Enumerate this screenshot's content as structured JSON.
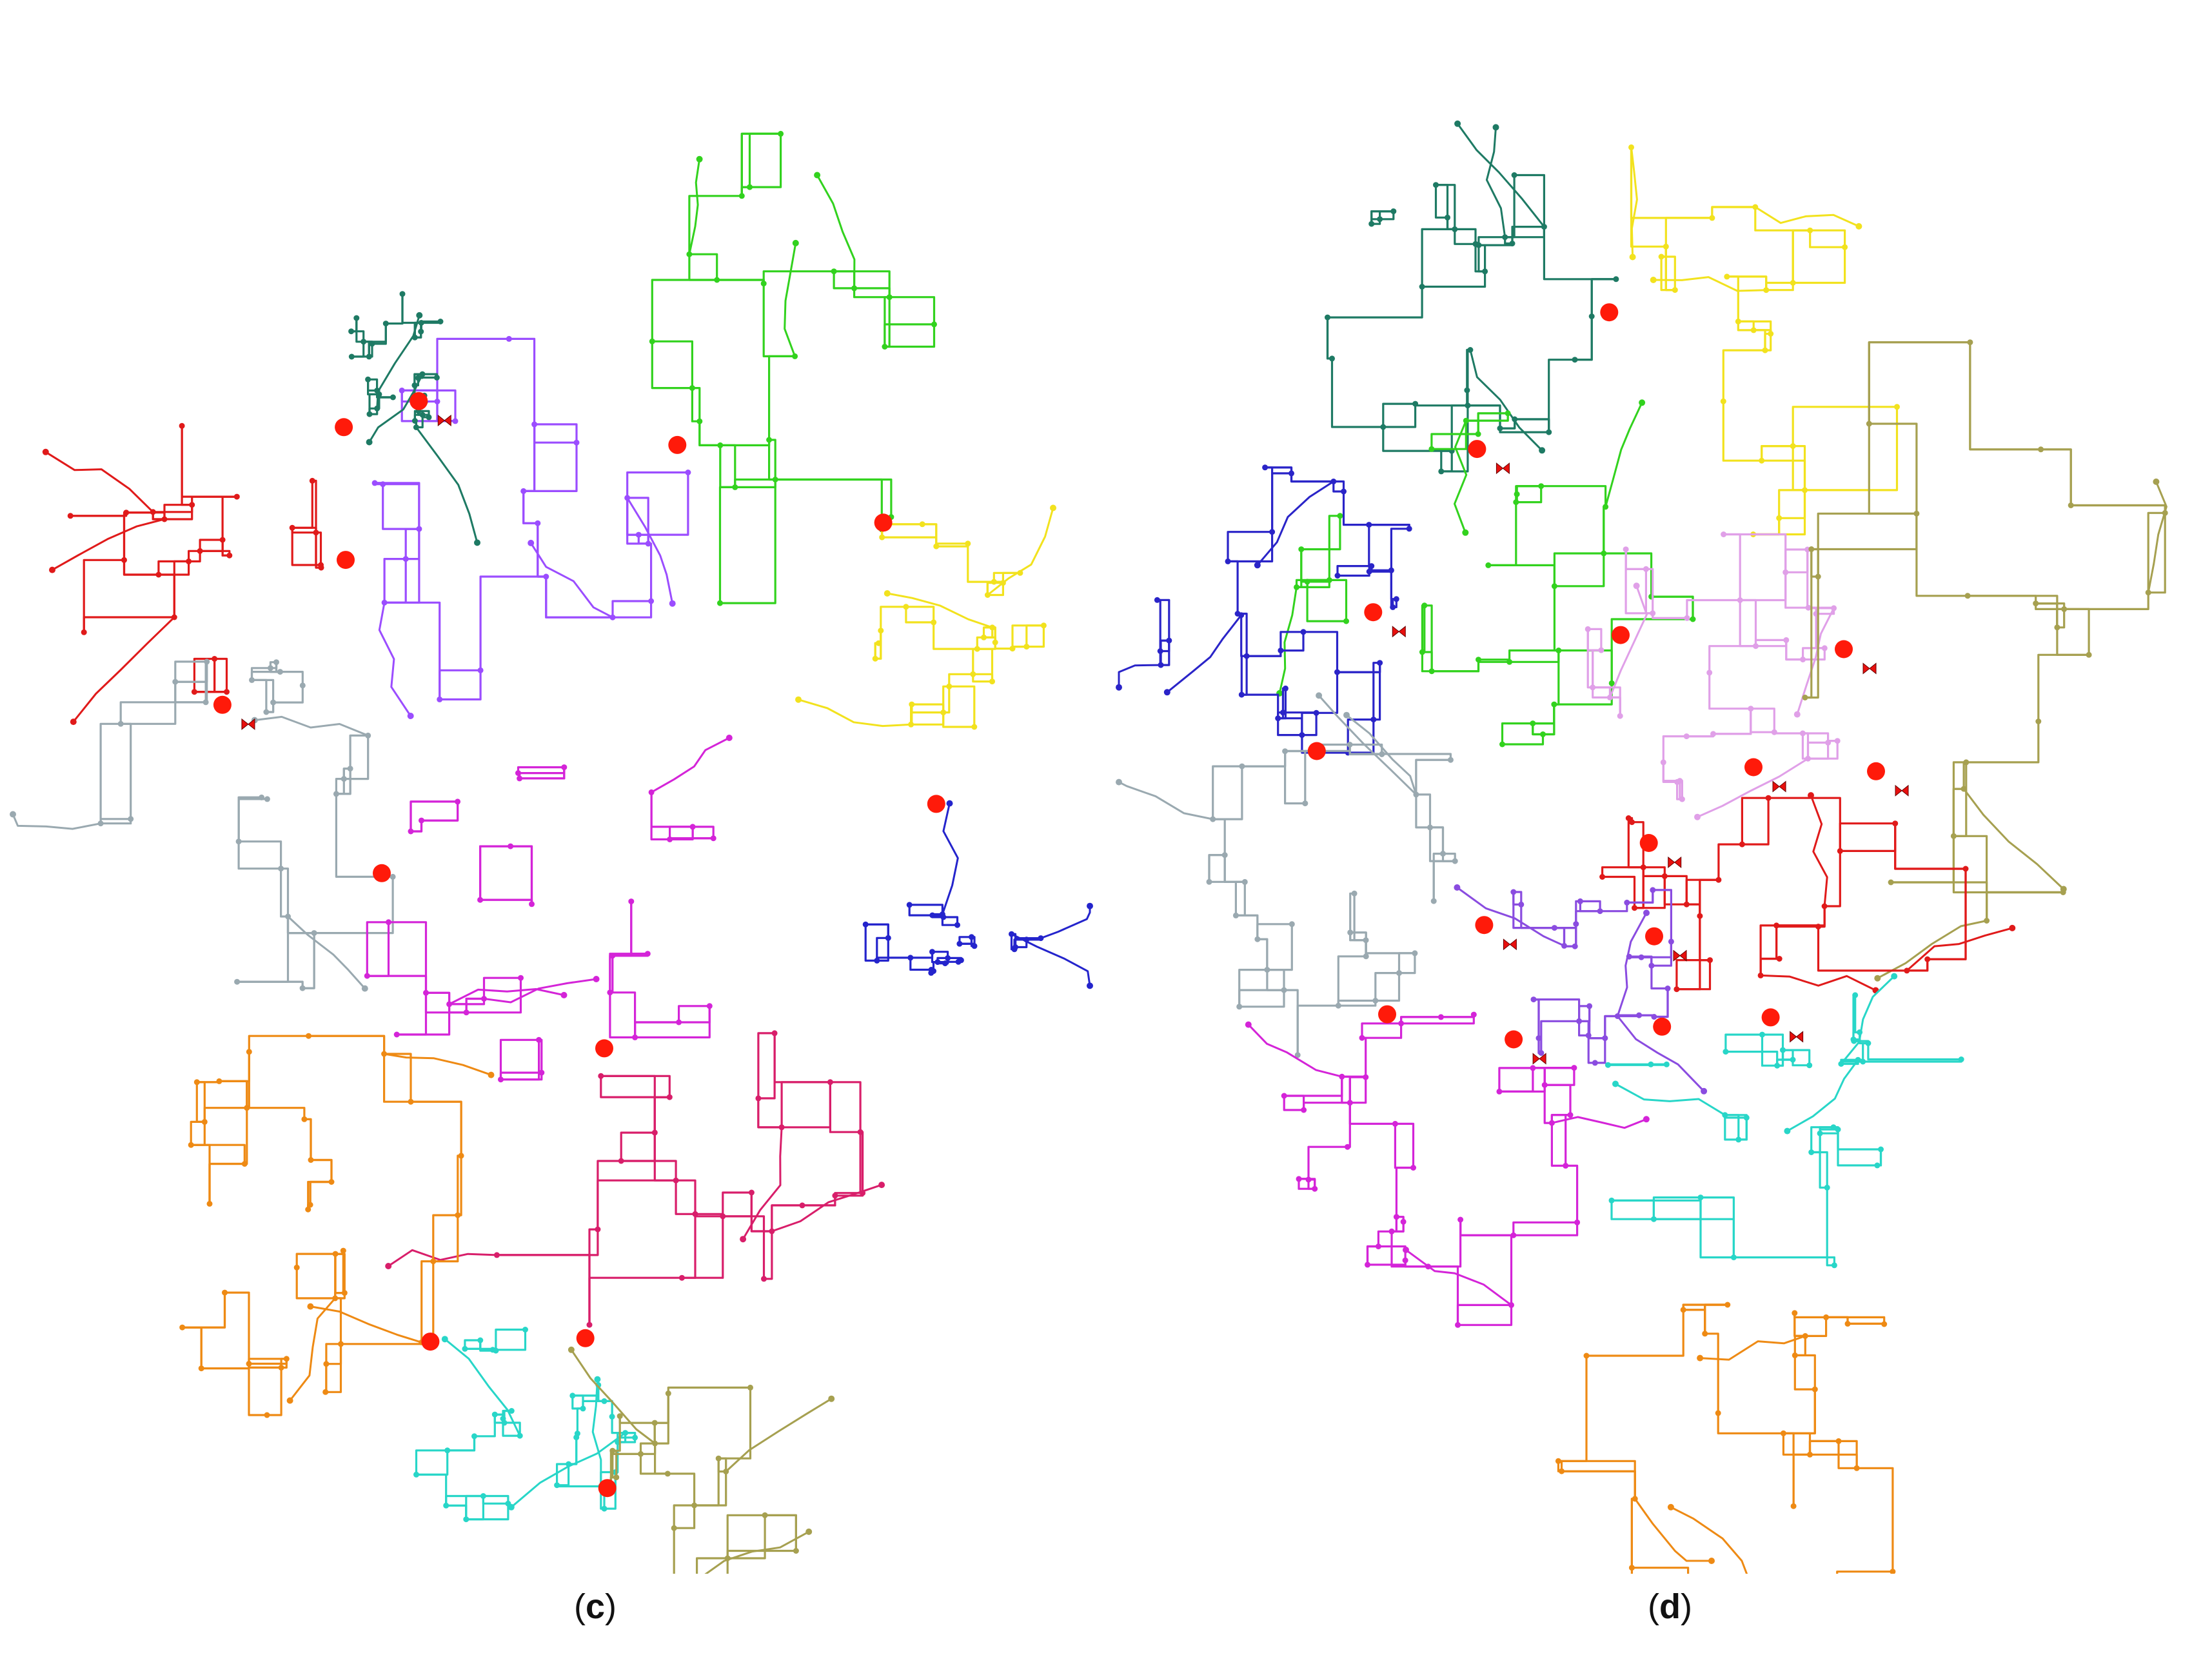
{
  "panels": [
    {
      "id": "c",
      "caption_open": "(",
      "caption_letter": "c",
      "caption_close": ")",
      "district_colors": [
        "#9b4dff",
        "#32d21e",
        "#1e7a64",
        "#e01a1a",
        "#9aa9b0",
        "#d424d8",
        "#f2e21e",
        "#d81e6a",
        "#2424cc",
        "#ee8a14",
        "#28d6c8",
        "#a6a050"
      ],
      "valve_color": "#e8100e",
      "ring_color": "#ff1a0a"
    },
    {
      "id": "d",
      "caption_open": "(",
      "caption_letter": "d",
      "caption_close": ")",
      "district_colors": [
        "#1e7a64",
        "#f2e21e",
        "#32d21e",
        "#2a24c8",
        "#e0a0e8",
        "#a6a050",
        "#9aa9b0",
        "#e01a1a",
        "#8a4ce0",
        "#d424d8",
        "#28d6c8",
        "#ee8a14"
      ],
      "valve_color": "#e8100e",
      "ring_color": "#ff1a0a"
    }
  ]
}
